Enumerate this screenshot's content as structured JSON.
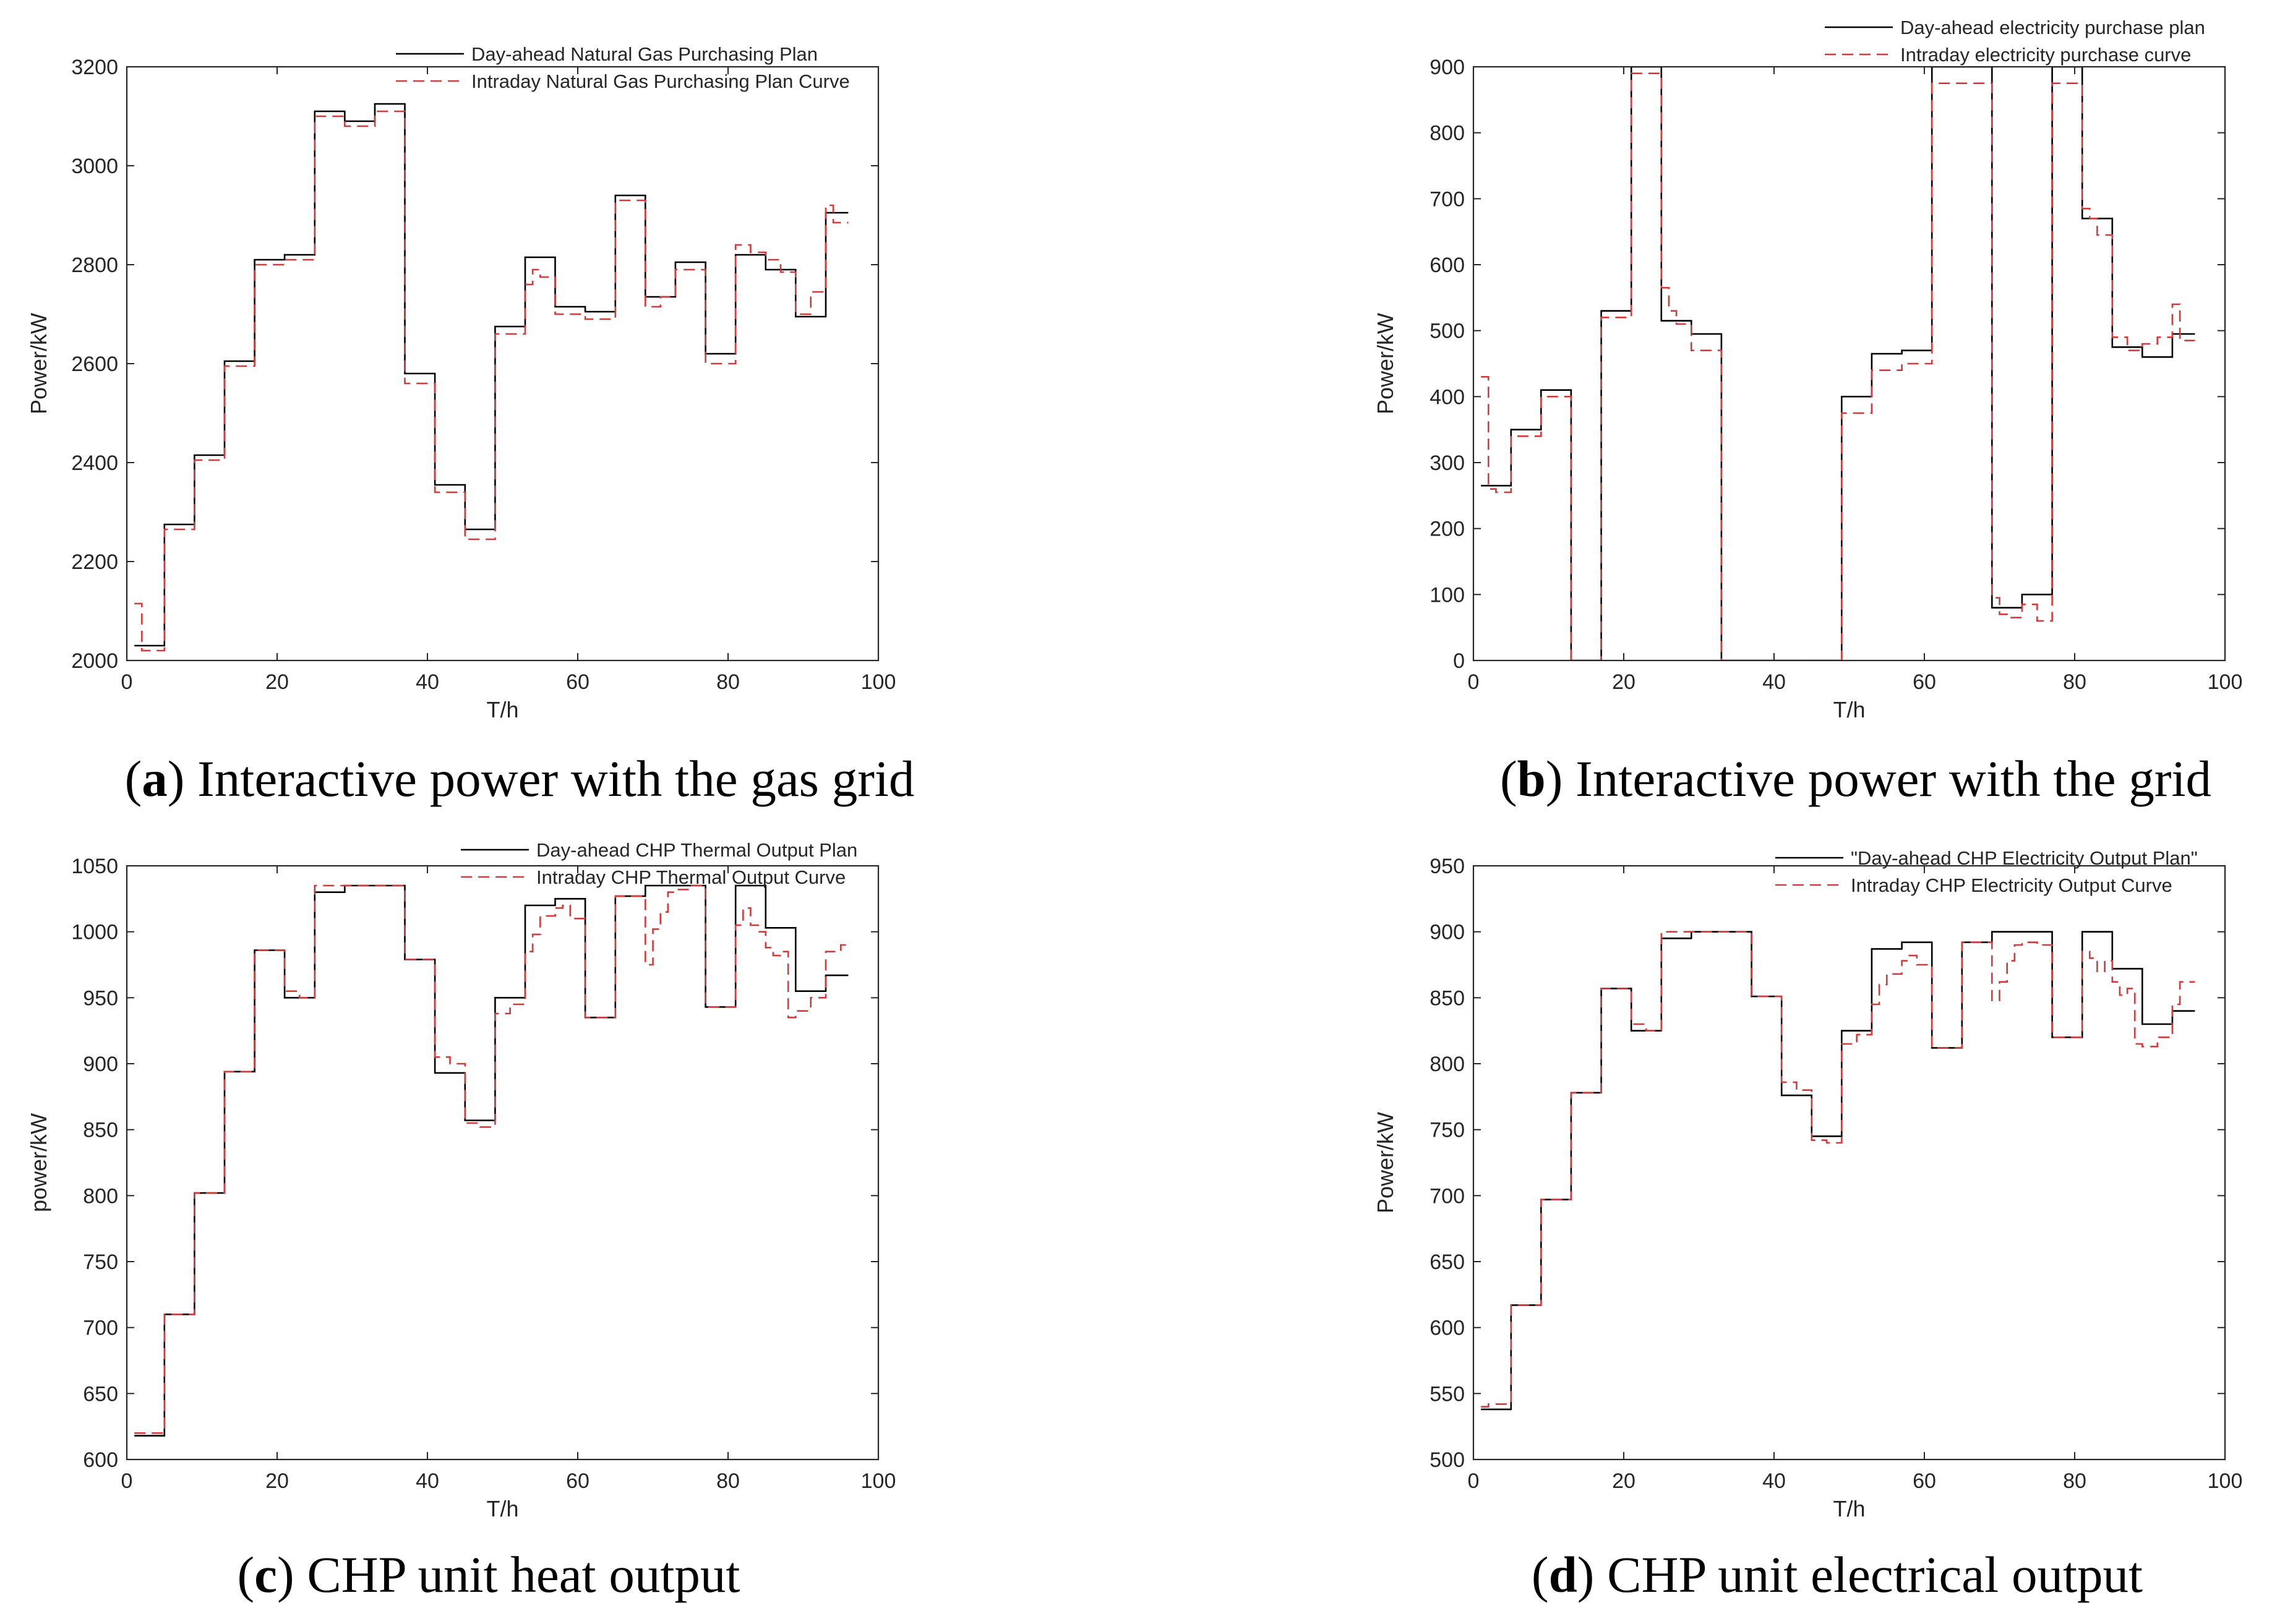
{
  "figure": {
    "colors": {
      "plan": "#000000",
      "intraday": "#d13b3b",
      "axis": "#262626",
      "text": "#262626"
    }
  },
  "chart_data": [
    {
      "id": "a",
      "type": "line",
      "step": true,
      "caption": {
        "letter": "a",
        "text": "Interactive power with the gas grid"
      },
      "xlabel": "T/h",
      "ylabel": "Power/kW",
      "xlim": [
        0,
        100
      ],
      "ylim": [
        2000,
        3200
      ],
      "xticks": [
        0,
        20,
        40,
        60,
        80,
        100
      ],
      "yticks": [
        2000,
        2200,
        2400,
        2600,
        2800,
        3000,
        3200
      ],
      "legend_position": "top-right",
      "series": [
        {
          "name": "Day-ahead Natural Gas Purchasing Plan",
          "style": "solid",
          "x": [
            1,
            5,
            9,
            13,
            17,
            21,
            25,
            29,
            33,
            37,
            41,
            45,
            49,
            53,
            57,
            61,
            65,
            69,
            73,
            77,
            81,
            85,
            89,
            93,
            96
          ],
          "values": [
            2030,
            2275,
            2415,
            2605,
            2810,
            2820,
            3110,
            3090,
            3125,
            2580,
            2355,
            2265,
            2675,
            2815,
            2715,
            2705,
            2940,
            2735,
            2805,
            2620,
            2820,
            2790,
            2695,
            2905,
            2905
          ]
        },
        {
          "name": "Intraday Natural Gas Purchasing Plan Curve",
          "style": "dashed",
          "x": [
            1,
            2,
            5,
            9,
            13,
            17,
            21,
            25,
            29,
            33,
            37,
            41,
            45,
            49,
            53,
            54,
            55,
            57,
            61,
            65,
            69,
            71,
            73,
            77,
            81,
            83,
            85,
            87,
            89,
            91,
            93,
            94,
            96
          ],
          "values": [
            2115,
            2020,
            2265,
            2405,
            2595,
            2800,
            2810,
            3100,
            3080,
            3110,
            2560,
            2340,
            2245,
            2660,
            2760,
            2790,
            2775,
            2700,
            2690,
            2930,
            2715,
            2735,
            2790,
            2600,
            2840,
            2825,
            2810,
            2785,
            2700,
            2745,
            2920,
            2885,
            2885
          ]
        }
      ]
    },
    {
      "id": "b",
      "type": "line",
      "step": true,
      "caption": {
        "letter": "b",
        "text": "Interactive power with the grid"
      },
      "xlabel": "T/h",
      "ylabel": "Power/kW",
      "xlim": [
        0,
        100
      ],
      "ylim": [
        0,
        900
      ],
      "xticks": [
        0,
        20,
        40,
        60,
        80,
        100
      ],
      "yticks": [
        0,
        100,
        200,
        300,
        400,
        500,
        600,
        700,
        800,
        900
      ],
      "legend_position": "top-right",
      "series": [
        {
          "name": "Day-ahead electricity purchase plan",
          "style": "solid",
          "x": [
            1,
            5,
            9,
            13,
            17,
            21,
            25,
            29,
            33,
            49,
            53,
            57,
            61,
            69,
            73,
            77,
            81,
            85,
            89,
            93,
            96
          ],
          "values": [
            265,
            350,
            410,
            0,
            530,
            900,
            515,
            495,
            0,
            400,
            465,
            470,
            900,
            80,
            100,
            900,
            670,
            475,
            460,
            495,
            495
          ]
        },
        {
          "name": "Intraday electricity purchase curve",
          "style": "dashed",
          "x": [
            1,
            2,
            3,
            5,
            9,
            13,
            17,
            21,
            25,
            26,
            27,
            29,
            33,
            49,
            53,
            57,
            61,
            69,
            70,
            71,
            73,
            75,
            77,
            81,
            82,
            83,
            85,
            87,
            89,
            91,
            93,
            94,
            96
          ],
          "values": [
            430,
            260,
            255,
            340,
            400,
            0,
            520,
            890,
            565,
            530,
            510,
            470,
            0,
            375,
            440,
            450,
            875,
            95,
            70,
            65,
            85,
            60,
            875,
            685,
            670,
            645,
            490,
            470,
            480,
            490,
            540,
            485,
            485
          ]
        }
      ]
    },
    {
      "id": "c",
      "type": "line",
      "step": true,
      "caption": {
        "letter": "c",
        "text": "CHP unit heat output"
      },
      "xlabel": "T/h",
      "ylabel": "power/kW",
      "xlim": [
        0,
        100
      ],
      "ylim": [
        600,
        1050
      ],
      "xticks": [
        0,
        20,
        40,
        60,
        80,
        100
      ],
      "yticks": [
        600,
        650,
        700,
        750,
        800,
        850,
        900,
        950,
        1000,
        1050
      ],
      "legend_position": "top-right",
      "series": [
        {
          "name": "Day-ahead CHP Thermal Output Plan",
          "style": "solid",
          "x": [
            1,
            5,
            9,
            13,
            17,
            21,
            25,
            29,
            37,
            41,
            45,
            49,
            53,
            57,
            61,
            65,
            69,
            73,
            77,
            81,
            85,
            89,
            93,
            96
          ],
          "values": [
            618,
            710,
            802,
            894,
            986,
            950,
            1030,
            1035,
            979,
            893,
            857,
            950,
            1020,
            1025,
            935,
            1027,
            1035,
            1035,
            943,
            1035,
            1003,
            955,
            967,
            967
          ]
        },
        {
          "name": "Intraday CHP Thermal Output Curve",
          "style": "dashed",
          "x": [
            1,
            5,
            9,
            13,
            17,
            21,
            23,
            25,
            29,
            37,
            41,
            43,
            45,
            47,
            49,
            51,
            53,
            54,
            55,
            57,
            58,
            59,
            61,
            65,
            69,
            70,
            71,
            72,
            73,
            75,
            77,
            81,
            82,
            83,
            84,
            85,
            86,
            87,
            88,
            89,
            91,
            93,
            95,
            96
          ],
          "values": [
            620,
            710,
            802,
            894,
            986,
            955,
            950,
            1035,
            1035,
            979,
            905,
            900,
            855,
            852,
            938,
            945,
            985,
            998,
            1012,
            1018,
            1020,
            1010,
            935,
            1027,
            975,
            1002,
            1015,
            1030,
            1032,
            1035,
            943,
            1005,
            1018,
            1005,
            1000,
            988,
            982,
            985,
            935,
            940,
            950,
            985,
            990,
            990
          ]
        }
      ]
    },
    {
      "id": "d",
      "type": "line",
      "step": true,
      "caption": {
        "letter": "d",
        "text": "CHP unit electrical output"
      },
      "xlabel": "T/h",
      "ylabel": "Power/kW",
      "xlim": [
        0,
        100
      ],
      "ylim": [
        500,
        950
      ],
      "xticks": [
        0,
        20,
        40,
        60,
        80,
        100
      ],
      "yticks": [
        500,
        550,
        600,
        650,
        700,
        750,
        800,
        850,
        900,
        950
      ],
      "legend_position": "top-right",
      "series": [
        {
          "name": "\"Day-ahead CHP Electricity Output Plan\"",
          "style": "solid",
          "x": [
            1,
            5,
            9,
            13,
            17,
            21,
            25,
            29,
            37,
            41,
            45,
            49,
            53,
            57,
            61,
            65,
            69,
            73,
            77,
            81,
            85,
            89,
            93,
            96
          ],
          "values": [
            538,
            617,
            697,
            778,
            857,
            825,
            895,
            900,
            851,
            776,
            745,
            825,
            887,
            892,
            812,
            892,
            900,
            900,
            820,
            900,
            872,
            830,
            840,
            840
          ]
        },
        {
          "name": "Intraday CHP Electricity Output Curve",
          "style": "dashed",
          "x": [
            1,
            2,
            5,
            9,
            13,
            17,
            21,
            23,
            25,
            29,
            37,
            41,
            43,
            45,
            47,
            49,
            51,
            53,
            54,
            55,
            57,
            58,
            59,
            61,
            65,
            69,
            70,
            71,
            72,
            73,
            75,
            77,
            81,
            82,
            83,
            84,
            85,
            86,
            87,
            88,
            89,
            91,
            93,
            94,
            96
          ],
          "values": [
            540,
            542,
            617,
            697,
            778,
            857,
            830,
            825,
            900,
            900,
            851,
            786,
            780,
            742,
            740,
            815,
            822,
            845,
            860,
            868,
            878,
            882,
            875,
            812,
            892,
            848,
            862,
            878,
            890,
            892,
            890,
            820,
            885,
            880,
            870,
            878,
            862,
            852,
            857,
            815,
            813,
            820,
            845,
            862,
            862
          ]
        }
      ]
    }
  ]
}
